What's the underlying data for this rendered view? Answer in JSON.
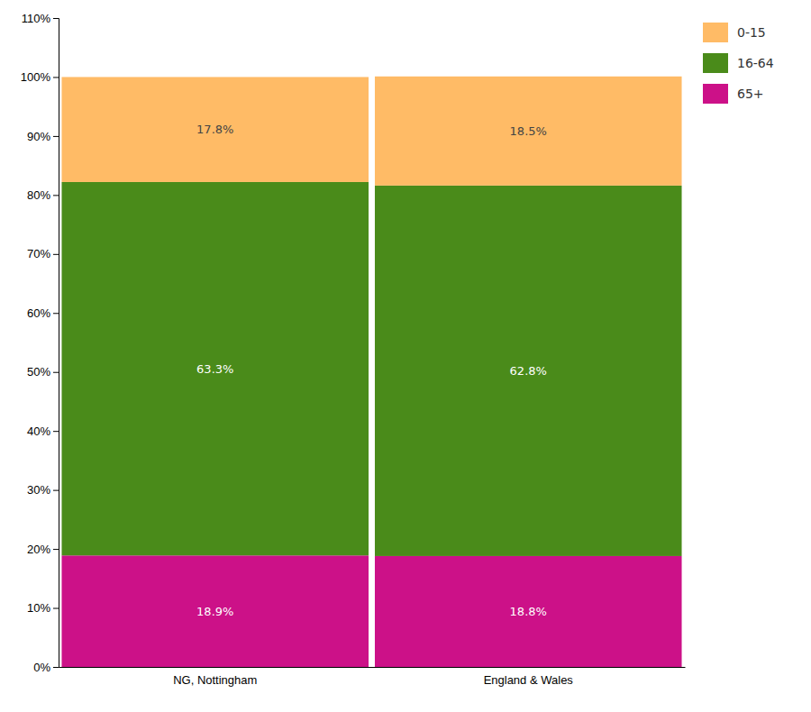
{
  "chart_data": {
    "type": "bar",
    "stacked": true,
    "data_labels": true,
    "grid": false,
    "legend": "right",
    "categories": [
      "NG, Nottingham",
      "England & Wales"
    ],
    "series": [
      {
        "name": "65+",
        "color": "#CC1188",
        "values": [
          18.9,
          18.8
        ],
        "value_labels": [
          "18.9%",
          "18.8%"
        ]
      },
      {
        "name": "16-64",
        "color": "#4A8B1A",
        "values": [
          63.3,
          62.8
        ],
        "value_labels": [
          "63.3%",
          "62.8%"
        ]
      },
      {
        "name": "0-15",
        "color": "#FFBB66",
        "values": [
          17.8,
          18.5
        ],
        "value_labels": [
          "17.8%",
          "18.5%"
        ]
      }
    ],
    "ylim": [
      0,
      110
    ],
    "yticks": [
      {
        "value": 0,
        "label": "0%"
      },
      {
        "value": 10,
        "label": "10%"
      },
      {
        "value": 20,
        "label": "20%"
      },
      {
        "value": 30,
        "label": "30%"
      },
      {
        "value": 40,
        "label": "40%"
      },
      {
        "value": 50,
        "label": "50%"
      },
      {
        "value": 60,
        "label": "60%"
      },
      {
        "value": 70,
        "label": "70%"
      },
      {
        "value": 80,
        "label": "80%"
      },
      {
        "value": 90,
        "label": "90%"
      },
      {
        "value": 100,
        "label": "100%"
      },
      {
        "value": 110,
        "label": "110%"
      }
    ]
  }
}
